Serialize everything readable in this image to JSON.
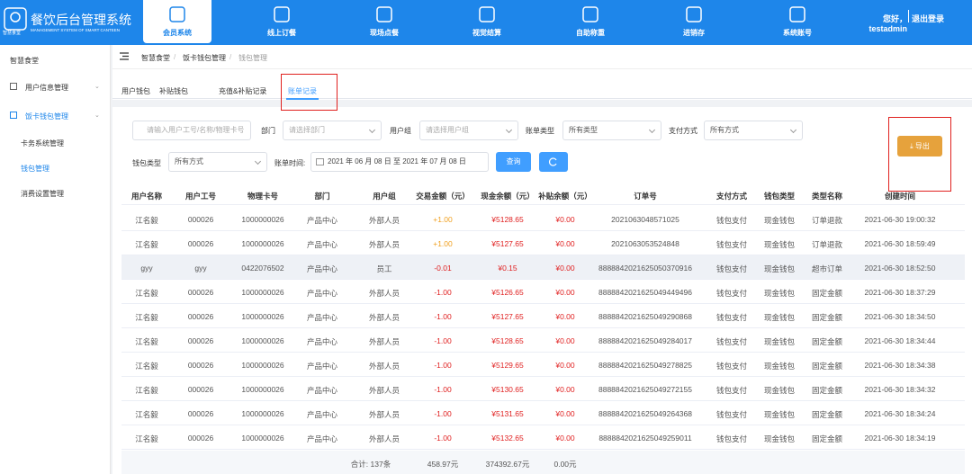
{
  "header": {
    "logo_badge": "智慧食堂",
    "title": "餐饮后台管理系统",
    "subtitle": "MANAGEMENT SYSTEM OF SMART CANTEEN",
    "nav": [
      "会员系统",
      "线上订餐",
      "现场点餐",
      "视觉结算",
      "自助称重",
      "进销存",
      "系统账号"
    ],
    "greeting": "您好，testadmin",
    "logout": "退出登录"
  },
  "sidebar": {
    "root": "智慧食堂",
    "groups": [
      {
        "label": "用户信息管理",
        "children": []
      },
      {
        "label": "饭卡钱包管理",
        "children": [
          "卡务系统管理",
          "钱包管理",
          "消费设置管理"
        ]
      }
    ]
  },
  "breadcrumb": [
    "智慧食堂",
    "饭卡钱包管理",
    "钱包管理"
  ],
  "tabs": [
    "用户钱包",
    "补贴钱包",
    "充值&补贴记录",
    "账单记录"
  ],
  "filters": {
    "search_placeholder": "请输入用户工号/名称/物理卡号",
    "department_label": "部门",
    "department_placeholder": "请选择部门",
    "group_label": "用户组",
    "group_placeholder": "请选择用户组",
    "bill_type_label": "账单类型",
    "bill_type_value": "所有类型",
    "pay_method_label": "支付方式",
    "pay_method_value": "所有方式",
    "wallet_type_label": "钱包类型",
    "wallet_type_value": "所有方式",
    "bill_time_label": "账单时间:",
    "date_start": "2021 年 06 月 08 日",
    "date_sep": "至",
    "date_end": "2021 年 07 月 08 日",
    "query_button": "查询",
    "export_button": "导出"
  },
  "table": {
    "columns": [
      "用户名称",
      "用户工号",
      "物理卡号",
      "部门",
      "用户组",
      "交易金额（元）",
      "现金余额（元）",
      "补贴余额（元）",
      "订单号",
      "支付方式",
      "钱包类型",
      "类型名称",
      "创建时间"
    ],
    "rows": [
      [
        "江名毅",
        "000026",
        "1000000026",
        "产品中心",
        "外部人员",
        "+1.00",
        "¥5128.65",
        "¥0.00",
        "2021063048571025",
        "钱包支付",
        "现金钱包",
        "订单退款",
        "2021-06-30 19:00:32"
      ],
      [
        "江名毅",
        "000026",
        "1000000026",
        "产品中心",
        "外部人员",
        "+1.00",
        "¥5127.65",
        "¥0.00",
        "2021063053524848",
        "钱包支付",
        "现金钱包",
        "订单退款",
        "2021-06-30 18:59:49"
      ],
      [
        "gyy",
        "gyy",
        "0422076502",
        "产品中心",
        "员工",
        "-0.01",
        "¥0.15",
        "¥0.00",
        "8888842021625050370916",
        "钱包支付",
        "现金钱包",
        "超市订单",
        "2021-06-30 18:52:50"
      ],
      [
        "江名毅",
        "000026",
        "1000000026",
        "产品中心",
        "外部人员",
        "-1.00",
        "¥5126.65",
        "¥0.00",
        "8888842021625049449496",
        "钱包支付",
        "现金钱包",
        "固定金额",
        "2021-06-30 18:37:29"
      ],
      [
        "江名毅",
        "000026",
        "1000000026",
        "产品中心",
        "外部人员",
        "-1.00",
        "¥5127.65",
        "¥0.00",
        "8888842021625049290868",
        "钱包支付",
        "现金钱包",
        "固定金额",
        "2021-06-30 18:34:50"
      ],
      [
        "江名毅",
        "000026",
        "1000000026",
        "产品中心",
        "外部人员",
        "-1.00",
        "¥5128.65",
        "¥0.00",
        "8888842021625049284017",
        "钱包支付",
        "现金钱包",
        "固定金额",
        "2021-06-30 18:34:44"
      ],
      [
        "江名毅",
        "000026",
        "1000000026",
        "产品中心",
        "外部人员",
        "-1.00",
        "¥5129.65",
        "¥0.00",
        "8888842021625049278825",
        "钱包支付",
        "现金钱包",
        "固定金额",
        "2021-06-30 18:34:38"
      ],
      [
        "江名毅",
        "000026",
        "1000000026",
        "产品中心",
        "外部人员",
        "-1.00",
        "¥5130.65",
        "¥0.00",
        "8888842021625049272155",
        "钱包支付",
        "现金钱包",
        "固定金额",
        "2021-06-30 18:34:32"
      ],
      [
        "江名毅",
        "000026",
        "1000000026",
        "产品中心",
        "外部人员",
        "-1.00",
        "¥5131.65",
        "¥0.00",
        "8888842021625049264368",
        "钱包支付",
        "现金钱包",
        "固定金额",
        "2021-06-30 18:34:24"
      ],
      [
        "江名毅",
        "000026",
        "1000000026",
        "产品中心",
        "外部人员",
        "-1.00",
        "¥5132.65",
        "¥0.00",
        "8888842021625049259011",
        "钱包支付",
        "现金钱包",
        "固定金额",
        "2021-06-30 18:34:19"
      ]
    ],
    "footer": {
      "total_label": "合计: 137条",
      "amount": "458.97元",
      "cash": "374392.67元",
      "subsidy": "0.00元"
    }
  }
}
